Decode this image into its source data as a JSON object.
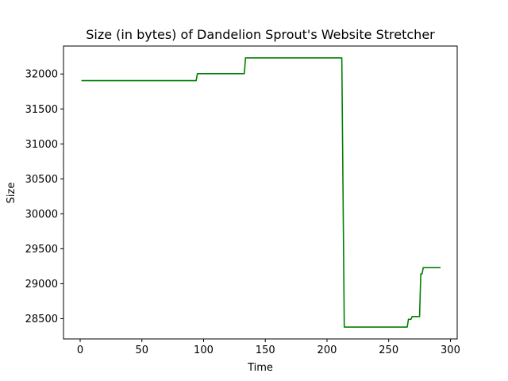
{
  "chart_data": {
    "type": "line",
    "title": "Size (in bytes) of Dandelion Sprout's Website Stretcher",
    "xlabel": "Time",
    "ylabel": "Size",
    "xlim": [
      -13.5,
      305.5
    ],
    "ylim": [
      28210,
      32400
    ],
    "xticks": [
      0,
      50,
      100,
      150,
      200,
      250,
      300
    ],
    "xtick_labels": [
      "0",
      "50",
      "100",
      "150",
      "200",
      "250",
      "300"
    ],
    "yticks": [
      28500,
      29000,
      29500,
      30000,
      30500,
      31000,
      31500,
      32000
    ],
    "ytick_labels": [
      "28500",
      "29000",
      "29500",
      "30000",
      "30500",
      "31000",
      "31500",
      "32000"
    ],
    "grid": false,
    "series": [
      {
        "color": "#008000",
        "x": [
          1,
          94,
          95,
          133,
          134,
          212,
          214,
          265,
          266,
          268,
          269,
          275,
          276,
          277,
          278,
          280,
          292
        ],
        "y": [
          31905,
          31905,
          32005,
          32005,
          32230,
          32230,
          28380,
          28380,
          28490,
          28490,
          28530,
          28530,
          29140,
          29140,
          29230,
          29230,
          29230
        ]
      }
    ]
  }
}
